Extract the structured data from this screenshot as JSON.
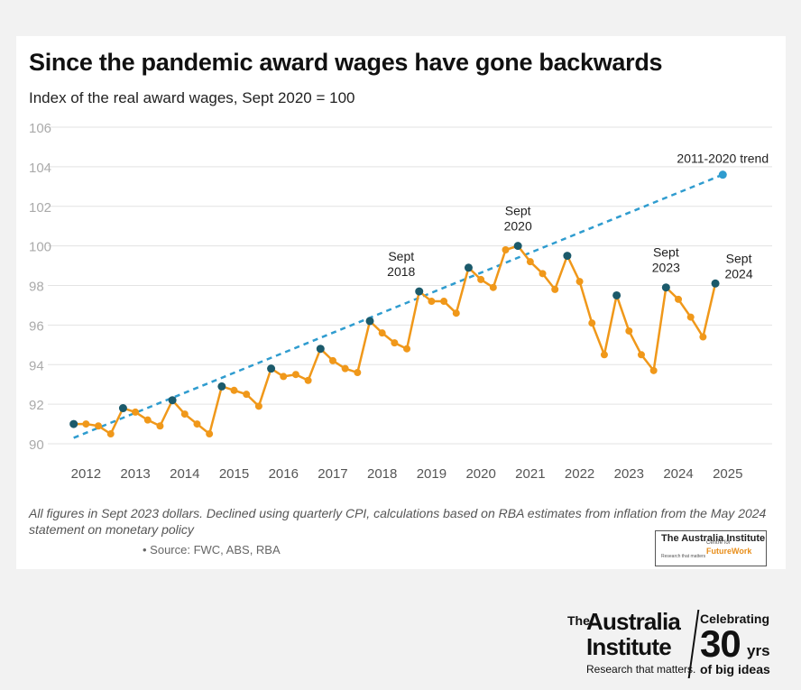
{
  "title": "Since the pandemic award wages have gone backwards",
  "subtitle": "Index of the real award wages, Sept 2020 = 100",
  "footnote": "All figures in Sept 2023 dollars. Declined using quarterly CPI, calculations based on RBA estimates from inflation from the May 2024 statement on monetary policy",
  "source": "• Source: FWC, ABS, RBA",
  "mini_logo": {
    "brand": "The Australia Institute",
    "tagline": "Research that matters",
    "centre_small": "Centre for",
    "centre_name": "FutureWork"
  },
  "big_logo": {
    "the": "The",
    "australia": "Australia",
    "institute": "Institute",
    "tagline": "Research that matters.",
    "celebrating": "Celebrating",
    "thirty": "30",
    "yrs": "yrs",
    "of_big_ideas": "of big ideas"
  },
  "colors": {
    "series": "#f0981a",
    "highlight_points": "#1b5a6b",
    "trend": "#2f9ccf",
    "grid": "#e3e3e3",
    "tick_text": "#aaaaaa",
    "xtick_text": "#555555"
  },
  "chart_data": {
    "type": "line",
    "title": "Since the pandemic award wages have gone backwards",
    "subtitle": "Index of the real award wages, Sept 2020 = 100",
    "xlabel": "",
    "ylabel": "",
    "ylim": [
      90,
      106
    ],
    "yticks": [
      90,
      92,
      94,
      96,
      98,
      100,
      102,
      104,
      106
    ],
    "xlim": [
      2011.5,
      2025.9
    ],
    "xticks": [
      2012,
      2013,
      2014,
      2015,
      2016,
      2017,
      2018,
      2019,
      2020,
      2021,
      2022,
      2023,
      2024,
      2025
    ],
    "grid": true,
    "series": [
      {
        "name": "",
        "points": [
          {
            "x": 2011.75,
            "y": 91.0,
            "highlight": true
          },
          {
            "x": 2012.0,
            "y": 91.0
          },
          {
            "x": 2012.25,
            "y": 90.9
          },
          {
            "x": 2012.5,
            "y": 90.5
          },
          {
            "x": 2012.75,
            "y": 91.8,
            "highlight": true
          },
          {
            "x": 2013.0,
            "y": 91.6
          },
          {
            "x": 2013.25,
            "y": 91.2
          },
          {
            "x": 2013.5,
            "y": 90.9
          },
          {
            "x": 2013.75,
            "y": 92.2,
            "highlight": true
          },
          {
            "x": 2014.0,
            "y": 91.5
          },
          {
            "x": 2014.25,
            "y": 91.0
          },
          {
            "x": 2014.5,
            "y": 90.5
          },
          {
            "x": 2014.75,
            "y": 92.9,
            "highlight": true
          },
          {
            "x": 2015.0,
            "y": 92.7
          },
          {
            "x": 2015.25,
            "y": 92.5
          },
          {
            "x": 2015.5,
            "y": 91.9
          },
          {
            "x": 2015.75,
            "y": 93.8,
            "highlight": true
          },
          {
            "x": 2016.0,
            "y": 93.4
          },
          {
            "x": 2016.25,
            "y": 93.5
          },
          {
            "x": 2016.5,
            "y": 93.2
          },
          {
            "x": 2016.75,
            "y": 94.8,
            "highlight": true
          },
          {
            "x": 2017.0,
            "y": 94.2
          },
          {
            "x": 2017.25,
            "y": 93.8
          },
          {
            "x": 2017.5,
            "y": 93.6
          },
          {
            "x": 2017.75,
            "y": 96.2,
            "highlight": true
          },
          {
            "x": 2018.0,
            "y": 95.6
          },
          {
            "x": 2018.25,
            "y": 95.1
          },
          {
            "x": 2018.5,
            "y": 94.8
          },
          {
            "x": 2018.75,
            "y": 97.7,
            "highlight": true
          },
          {
            "x": 2019.0,
            "y": 97.2
          },
          {
            "x": 2019.25,
            "y": 97.2
          },
          {
            "x": 2019.5,
            "y": 96.6
          },
          {
            "x": 2019.75,
            "y": 98.9,
            "highlight": true
          },
          {
            "x": 2020.0,
            "y": 98.3
          },
          {
            "x": 2020.25,
            "y": 97.9
          },
          {
            "x": 2020.5,
            "y": 99.8
          },
          {
            "x": 2020.75,
            "y": 100.0,
            "highlight": true
          },
          {
            "x": 2021.0,
            "y": 99.2
          },
          {
            "x": 2021.25,
            "y": 98.6
          },
          {
            "x": 2021.5,
            "y": 97.8
          },
          {
            "x": 2021.75,
            "y": 99.5,
            "highlight": true
          },
          {
            "x": 2022.0,
            "y": 98.2
          },
          {
            "x": 2022.25,
            "y": 96.1
          },
          {
            "x": 2022.5,
            "y": 94.5
          },
          {
            "x": 2022.75,
            "y": 97.5,
            "highlight": true
          },
          {
            "x": 2023.0,
            "y": 95.7
          },
          {
            "x": 2023.25,
            "y": 94.5
          },
          {
            "x": 2023.5,
            "y": 93.7
          },
          {
            "x": 2023.75,
            "y": 97.9,
            "highlight": true
          },
          {
            "x": 2024.0,
            "y": 97.3
          },
          {
            "x": 2024.25,
            "y": 96.4
          },
          {
            "x": 2024.5,
            "y": 95.4
          },
          {
            "x": 2024.75,
            "y": 98.1,
            "highlight": true
          }
        ]
      }
    ],
    "trend": {
      "label": "2011-2020 trend",
      "start": {
        "x": 2011.75,
        "y": 90.3
      },
      "end": {
        "x": 2024.9,
        "y": 103.6
      }
    },
    "annotations": [
      {
        "text": "Sept 2018",
        "x": 2018.75,
        "y": 97.7
      },
      {
        "text": "Sept 2020",
        "x": 2020.75,
        "y": 100.0
      },
      {
        "text": "Sept 2023",
        "x": 2023.75,
        "y": 97.9
      },
      {
        "text": "Sept 2024",
        "x": 2024.75,
        "y": 98.1
      }
    ]
  }
}
